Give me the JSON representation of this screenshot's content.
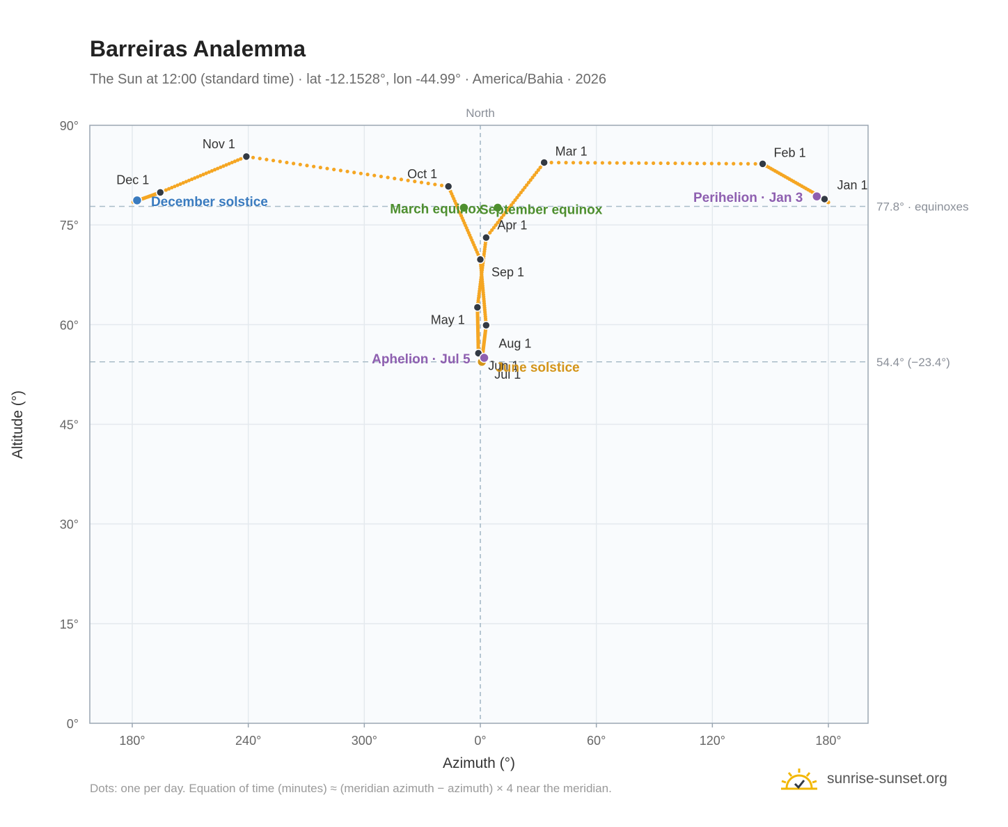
{
  "title": "Barreiras Analemma",
  "subtitle": "The Sun at 12:00 (standard time) · lat -12.1528°, lon -44.99° · America/Bahia · 2026",
  "footnote": "Dots: one per day. Equation of time (minutes) ≈ (meridian azimuth − azimuth) × 4 near the meridian.",
  "brand": "sunrise-sunset.org",
  "chart_data": {
    "type": "scatter",
    "xlabel": "Azimuth (°)",
    "ylabel": "Altitude (°)",
    "x_ticks": [
      "180°",
      "240°",
      "300°",
      "0°",
      "60°",
      "120°",
      "180°"
    ],
    "y_ticks": [
      "0°",
      "15°",
      "30°",
      "45°",
      "60°",
      "75°",
      "90°"
    ],
    "ylim": [
      0,
      90
    ],
    "north_label": "North",
    "grid": true,
    "reference_lines": [
      {
        "altitude": 77.8,
        "label": "77.8° · equinoxes"
      },
      {
        "altitude": 54.4,
        "label": "54.4° (−23.4°)"
      }
    ],
    "month_markers": [
      {
        "label": "Jan 1",
        "az": 178.0,
        "alt": 78.9
      },
      {
        "label": "Feb 1",
        "az": 146.0,
        "alt": 84.2
      },
      {
        "label": "Mar 1",
        "az": 33.0,
        "alt": 84.4
      },
      {
        "label": "Apr 1",
        "az": 3.0,
        "alt": 73.1
      },
      {
        "label": "May 1",
        "az": -1.5,
        "alt": 62.6
      },
      {
        "label": "Jun 1",
        "az": -1.0,
        "alt": 55.7
      },
      {
        "label": "Jul 1",
        "az": 0.8,
        "alt": 54.6
      },
      {
        "label": "Aug 1",
        "az": 3.0,
        "alt": 59.9
      },
      {
        "label": "Sep 1",
        "az": 0.0,
        "alt": 69.8
      },
      {
        "label": "Oct 1",
        "az": -16.5,
        "alt": 80.8
      },
      {
        "label": "Nov 1",
        "az": -121.0,
        "alt": 85.3
      },
      {
        "label": "Dec 1",
        "az": -165.5,
        "alt": 79.9
      }
    ],
    "events": [
      {
        "label": "December solstice",
        "az": -177.5,
        "alt": 78.7,
        "color": "#3a7bbf"
      },
      {
        "label": "March equinox",
        "az": -8.5,
        "alt": 77.6,
        "color": "#4e8f2f"
      },
      {
        "label": "September equinox",
        "az": 9.0,
        "alt": 77.6,
        "color": "#4e8f2f"
      },
      {
        "label": "June solstice",
        "az": 0.8,
        "alt": 54.4,
        "color": "#d4951a"
      },
      {
        "label": "Aphelion · Jul 5",
        "az": 2.0,
        "alt": 55.0,
        "color": "#8e5fb0"
      },
      {
        "label": "Perihelion · Jan 3",
        "az": 174.0,
        "alt": 79.3,
        "color": "#8e5fb0"
      }
    ],
    "series_color": "#f5a623",
    "marker_color": "#333a44"
  }
}
